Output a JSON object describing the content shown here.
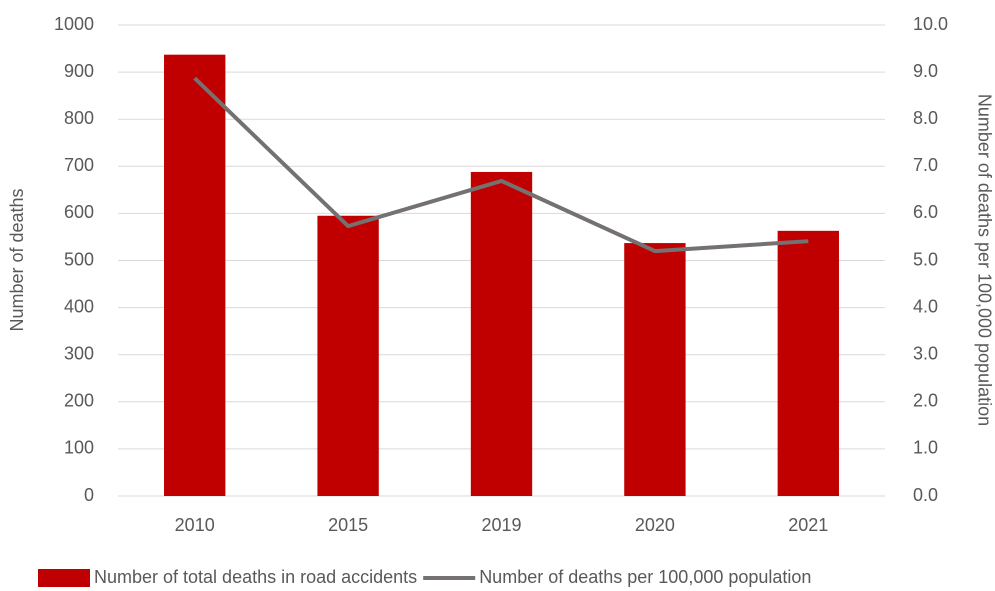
{
  "chart_data": {
    "type": "bar_line",
    "categories": [
      "2010",
      "2015",
      "2019",
      "2020",
      "2021"
    ],
    "series": [
      {
        "name": "Number of total deaths in road accidents",
        "type": "bar",
        "color": "#c00000",
        "values": [
          937,
          595,
          688,
          537,
          563
        ]
      },
      {
        "name": "Number of deaths per 100,000 population",
        "type": "line",
        "axis": "y2",
        "color": "#757171",
        "values": [
          8.87,
          5.73,
          6.69,
          5.2,
          5.41
        ]
      }
    ],
    "ylabel": "Number of deaths",
    "y2label": "Number of deaths per 100,000 population",
    "ylim": [
      0,
      1000
    ],
    "yticks": [
      0,
      100,
      200,
      300,
      400,
      500,
      600,
      700,
      800,
      900,
      1000
    ],
    "y2lim": [
      0,
      10
    ],
    "y2ticks": [
      {
        "value": 0,
        "label": "0.0"
      },
      {
        "value": 1,
        "label": "1.0"
      },
      {
        "value": 2,
        "label": "2.0"
      },
      {
        "value": 3,
        "label": "3.0"
      },
      {
        "value": 4,
        "label": "4.0"
      },
      {
        "value": 5,
        "label": "5.0"
      },
      {
        "value": 6,
        "label": "6.0"
      },
      {
        "value": 7,
        "label": "7.0"
      },
      {
        "value": 8,
        "label": "8.0"
      },
      {
        "value": 9,
        "label": "9.0"
      },
      {
        "value": 10,
        "label": "10.0"
      }
    ],
    "grid": true,
    "legend": "bottom"
  }
}
